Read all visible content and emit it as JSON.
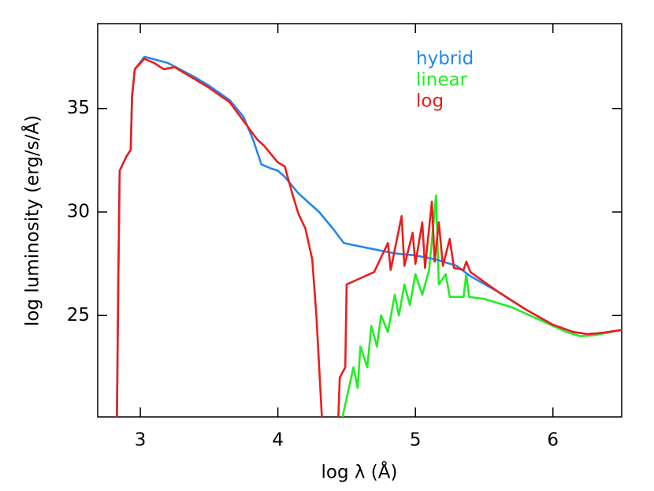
{
  "chart_data": {
    "type": "line",
    "xlabel": "log λ (Å)",
    "ylabel": "log luminosity (erg/s/Å)",
    "xlim": [
      2.69,
      6.5
    ],
    "ylim": [
      20.1,
      39.1
    ],
    "xticks": [
      3,
      4,
      5,
      6
    ],
    "yticks": [
      25,
      30,
      35
    ],
    "legend": "top-right",
    "series": [
      {
        "name": "linear",
        "color": "#22ee22",
        "x": [
          4.47,
          4.55,
          4.58,
          4.6,
          4.65,
          4.68,
          4.72,
          4.75,
          4.8,
          4.85,
          4.88,
          4.92,
          4.96,
          5.0,
          5.05,
          5.1,
          5.15,
          5.17,
          5.22,
          5.25,
          5.35,
          5.37,
          5.39,
          5.5,
          5.7,
          5.9,
          6.1,
          6.2,
          6.3,
          6.5
        ],
        "values": [
          20.1,
          22.5,
          21.5,
          23.5,
          22.5,
          24.5,
          23.5,
          25.0,
          24.2,
          26.0,
          25.0,
          26.5,
          25.5,
          27.0,
          26.0,
          27.2,
          30.8,
          26.5,
          27.0,
          25.9,
          25.9,
          27.0,
          25.9,
          25.8,
          25.4,
          24.8,
          24.2,
          24.0,
          24.05,
          24.3
        ]
      },
      {
        "name": "hybrid",
        "color": "#2288ee",
        "x": [
          2.83,
          2.84,
          2.85,
          2.9,
          2.93,
          2.94,
          2.96,
          3.03,
          3.2,
          3.4,
          3.5,
          3.65,
          3.75,
          3.82,
          3.88,
          3.95,
          4.0,
          4.05,
          4.15,
          4.3,
          4.4,
          4.48,
          4.55,
          4.7,
          4.85,
          5.0,
          5.15,
          5.3,
          5.4,
          5.6,
          5.8,
          6.0,
          6.15,
          6.25,
          6.35,
          6.5
        ],
        "values": [
          20.1,
          27.0,
          32.0,
          32.7,
          33.0,
          35.6,
          36.9,
          37.5,
          37.2,
          36.5,
          36.1,
          35.4,
          34.6,
          33.5,
          32.3,
          32.1,
          32.0,
          31.7,
          30.9,
          30.0,
          29.2,
          28.5,
          28.4,
          28.2,
          28.0,
          27.9,
          27.7,
          27.4,
          26.9,
          26.15,
          25.3,
          24.55,
          24.2,
          24.1,
          24.15,
          24.3
        ]
      },
      {
        "name": "log",
        "color": "#ee1c1c",
        "x": [
          2.83,
          2.84,
          2.85,
          2.9,
          2.93,
          2.94,
          2.96,
          3.03,
          3.1,
          3.17,
          3.25,
          3.4,
          3.5,
          3.65,
          3.75,
          3.85,
          3.9,
          4.0,
          4.05,
          4.1,
          4.15,
          4.2,
          4.25,
          4.28,
          4.32,
          4.38,
          4.44,
          4.45,
          4.49,
          4.5,
          4.6,
          4.7,
          4.8,
          4.82,
          4.9,
          4.92,
          4.98,
          5.0,
          5.05,
          5.07,
          5.12,
          5.14,
          5.17,
          5.2,
          5.25,
          5.28,
          5.35,
          5.37,
          5.4,
          5.6,
          5.8,
          6.0,
          6.15,
          6.25,
          6.35,
          6.5
        ],
        "values": [
          20.1,
          27.0,
          32.0,
          32.7,
          33.0,
          35.6,
          36.9,
          37.4,
          37.2,
          36.9,
          37.0,
          36.4,
          36.0,
          35.3,
          34.4,
          33.5,
          33.2,
          32.4,
          32.2,
          31.0,
          29.9,
          29.2,
          27.7,
          25.0,
          20.1,
          null,
          20.1,
          22.0,
          22.5,
          26.5,
          26.8,
          27.1,
          28.5,
          27.2,
          29.8,
          27.4,
          29.0,
          27.5,
          29.5,
          27.3,
          30.5,
          27.6,
          29.5,
          27.4,
          28.7,
          27.3,
          27.2,
          27.6,
          27.1,
          26.15,
          25.3,
          24.55,
          24.2,
          24.1,
          24.15,
          24.3
        ]
      }
    ]
  }
}
